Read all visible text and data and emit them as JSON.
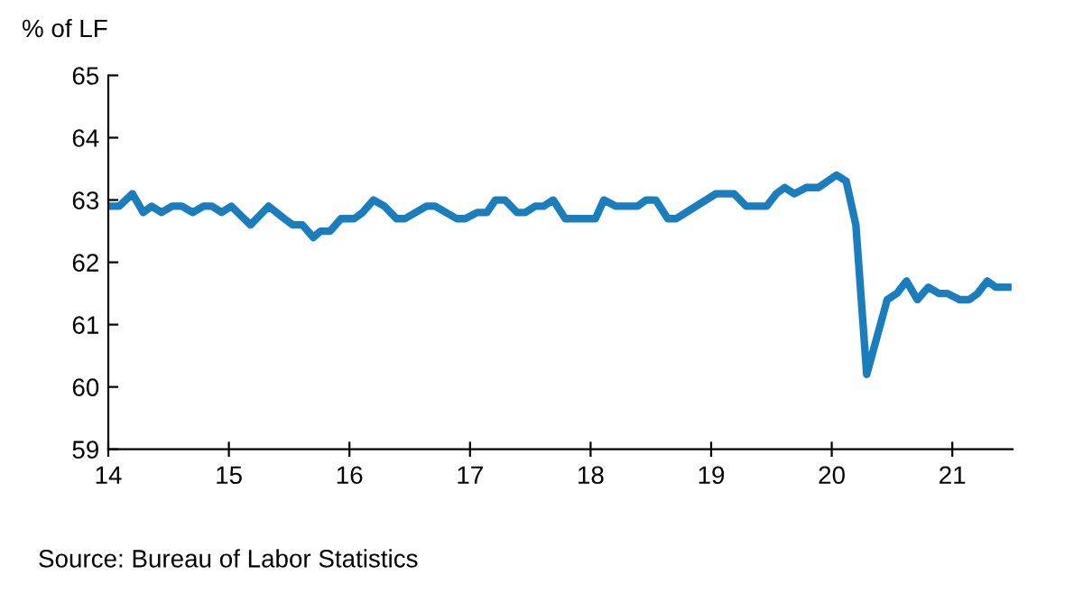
{
  "chart_data": {
    "type": "line",
    "ylabel": "% of LF",
    "x": [
      14.0,
      14.09,
      14.2,
      14.29,
      14.36,
      14.44,
      14.53,
      14.61,
      14.7,
      14.79,
      14.86,
      14.94,
      15.02,
      15.18,
      15.33,
      15.46,
      15.53,
      15.61,
      15.7,
      15.76,
      15.84,
      15.93,
      16.04,
      16.11,
      16.2,
      16.29,
      16.39,
      16.46,
      16.64,
      16.71,
      16.89,
      16.96,
      17.06,
      17.14,
      17.21,
      17.29,
      17.39,
      17.46,
      17.54,
      17.61,
      17.69,
      17.79,
      18.04,
      18.11,
      18.21,
      18.39,
      18.46,
      18.54,
      18.64,
      18.71,
      19.04,
      19.19,
      19.29,
      19.46,
      19.54,
      19.61,
      19.69,
      19.79,
      19.89,
      20.04,
      20.12,
      20.2,
      20.29,
      20.46,
      20.54,
      20.62,
      20.71,
      20.8,
      20.89,
      20.96,
      21.06,
      21.14,
      21.21,
      21.29,
      21.36,
      21.46
    ],
    "series": [
      {
        "color": "#1a7dbd",
        "values": [
          62.9,
          62.9,
          63.1,
          62.8,
          62.9,
          62.8,
          62.9,
          62.9,
          62.8,
          62.9,
          62.9,
          62.8,
          62.9,
          62.6,
          62.9,
          62.7,
          62.6,
          62.6,
          62.4,
          62.5,
          62.5,
          62.7,
          62.7,
          62.8,
          63.0,
          62.9,
          62.7,
          62.7,
          62.9,
          62.9,
          62.7,
          62.7,
          62.8,
          62.8,
          63.0,
          63.0,
          62.8,
          62.8,
          62.9,
          62.9,
          63.0,
          62.7,
          62.7,
          63.0,
          62.9,
          62.9,
          63.0,
          63.0,
          62.7,
          62.7,
          63.1,
          63.1,
          62.9,
          62.9,
          63.1,
          63.2,
          63.1,
          63.2,
          63.2,
          63.4,
          63.3,
          62.6,
          60.2,
          61.4,
          61.5,
          61.7,
          61.4,
          61.6,
          61.5,
          61.5,
          61.4,
          61.4,
          61.5,
          61.7,
          61.6,
          61.6
        ]
      }
    ],
    "xlim": [
      14,
      21.5
    ],
    "xticks": [
      14,
      15,
      16,
      17,
      18,
      19,
      20,
      21
    ],
    "ylim": [
      59,
      65
    ],
    "yticks": [
      59,
      60,
      61,
      62,
      63,
      64,
      65
    ],
    "grid": false,
    "legend": false,
    "marker": "none",
    "line_style": "solid",
    "annotations": [
      "Source: Bureau of Labor Statistics"
    ]
  }
}
